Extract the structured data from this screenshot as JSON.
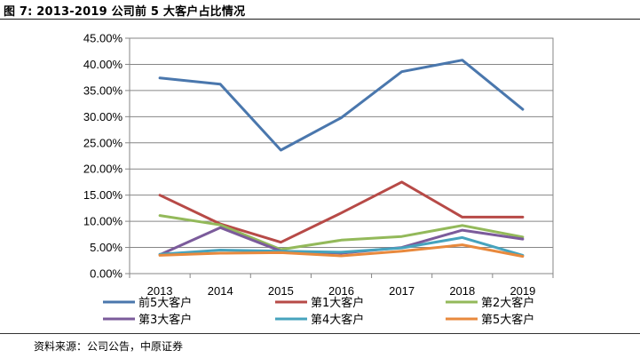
{
  "figure": {
    "title": "图 7:  2013-2019 公司前 5 大客户占比情况",
    "source": "资料来源：公司公告，中原证券"
  },
  "chart_data": {
    "type": "line",
    "categories": [
      "2013",
      "2014",
      "2015",
      "2016",
      "2017",
      "2018",
      "2019"
    ],
    "ylim": [
      0,
      45
    ],
    "y_ticks": [
      0,
      5,
      10,
      15,
      20,
      25,
      30,
      35,
      40,
      45
    ],
    "y_tick_labels": [
      "0.00%",
      "5.00%",
      "10.00%",
      "15.00%",
      "20.00%",
      "25.00%",
      "30.00%",
      "35.00%",
      "40.00%",
      "45.00%"
    ],
    "grid": true,
    "legend_position": "bottom",
    "series": [
      {
        "name": "前5大客户",
        "color": "#4a77ad",
        "values": [
          37.4,
          36.2,
          23.6,
          29.8,
          38.6,
          40.8,
          31.4
        ]
      },
      {
        "name": "第1大客户",
        "color": "#b74a47",
        "values": [
          15.0,
          9.5,
          6.0,
          11.6,
          17.5,
          10.8,
          10.8
        ]
      },
      {
        "name": "第2大客户",
        "color": "#93b95a",
        "values": [
          11.1,
          9.3,
          4.6,
          6.4,
          7.1,
          9.2,
          7.0
        ]
      },
      {
        "name": "第3大客户",
        "color": "#7b5b9b",
        "values": [
          3.6,
          8.8,
          4.3,
          3.9,
          5.0,
          8.3,
          6.6
        ]
      },
      {
        "name": "第4大客户",
        "color": "#46a3bd",
        "values": [
          3.7,
          4.5,
          4.3,
          4.1,
          4.9,
          6.9,
          3.5
        ]
      },
      {
        "name": "第5大客户",
        "color": "#e8893d",
        "values": [
          3.5,
          3.9,
          4.0,
          3.4,
          4.3,
          5.5,
          3.3
        ]
      }
    ]
  }
}
